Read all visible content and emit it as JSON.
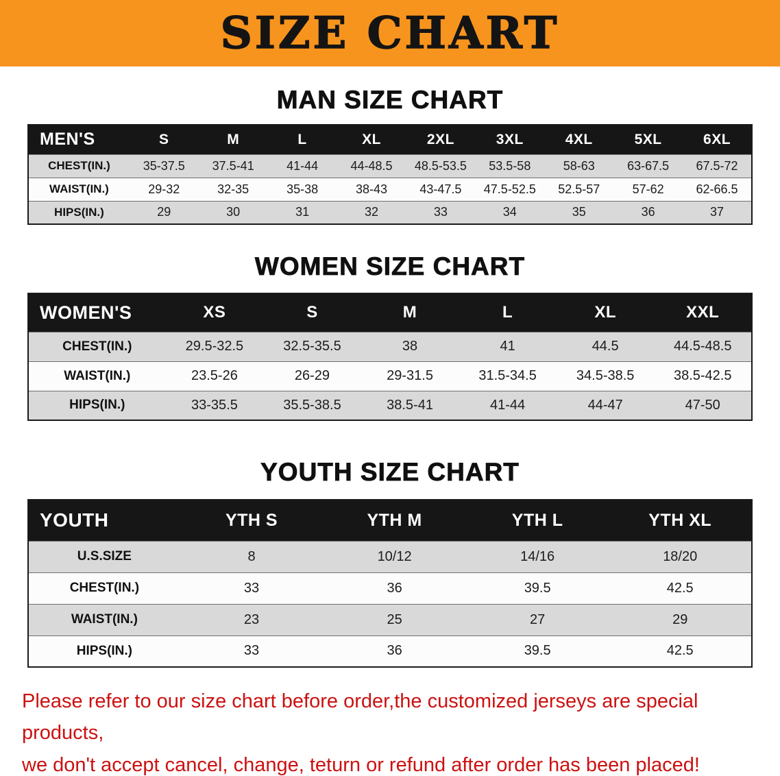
{
  "banner": {
    "title": "SIZE CHART",
    "bg_color": "#f7941d",
    "text_color": "#141414"
  },
  "sections": {
    "men": {
      "heading": "MAN SIZE CHART",
      "table": {
        "header_label": "MEN'S",
        "sizes": [
          "S",
          "M",
          "L",
          "XL",
          "2XL",
          "3XL",
          "4XL",
          "5XL",
          "6XL"
        ],
        "rows": [
          {
            "label": "CHEST(IN.)",
            "values": [
              "35-37.5",
              "37.5-41",
              "41-44",
              "44-48.5",
              "48.5-53.5",
              "53.5-58",
              "58-63",
              "63-67.5",
              "67.5-72"
            ]
          },
          {
            "label": "WAIST(IN.)",
            "values": [
              "29-32",
              "32-35",
              "35-38",
              "38-43",
              "43-47.5",
              "47.5-52.5",
              "52.5-57",
              "57-62",
              "62-66.5"
            ]
          },
          {
            "label": "HIPS(IN.)",
            "values": [
              "29",
              "30",
              "31",
              "32",
              "33",
              "34",
              "35",
              "36",
              "37"
            ]
          }
        ]
      }
    },
    "women": {
      "heading": "WOMEN SIZE CHART",
      "table": {
        "header_label": "WOMEN'S",
        "sizes": [
          "XS",
          "S",
          "M",
          "L",
          "XL",
          "XXL"
        ],
        "rows": [
          {
            "label": "CHEST(IN.)",
            "values": [
              "29.5-32.5",
              "32.5-35.5",
              "38",
              "41",
              "44.5",
              "44.5-48.5"
            ]
          },
          {
            "label": "WAIST(IN.)",
            "values": [
              "23.5-26",
              "26-29",
              "29-31.5",
              "31.5-34.5",
              "34.5-38.5",
              "38.5-42.5"
            ]
          },
          {
            "label": "HIPS(IN.)",
            "values": [
              "33-35.5",
              "35.5-38.5",
              "38.5-41",
              "41-44",
              "44-47",
              "47-50"
            ]
          }
        ]
      }
    },
    "youth": {
      "heading": "YOUTH SIZE CHART",
      "table": {
        "header_label": "YOUTH",
        "sizes": [
          "YTH S",
          "YTH M",
          "YTH L",
          "YTH XL"
        ],
        "rows": [
          {
            "label": "U.S.SIZE",
            "values": [
              "8",
              "10/12",
              "14/16",
              "18/20"
            ]
          },
          {
            "label": "CHEST(IN.)",
            "values": [
              "33",
              "36",
              "39.5",
              "42.5"
            ]
          },
          {
            "label": "WAIST(IN.)",
            "values": [
              "23",
              "25",
              "27",
              "29"
            ]
          },
          {
            "label": "HIPS(IN.)",
            "values": [
              "33",
              "36",
              "39.5",
              "42.5"
            ]
          }
        ]
      }
    }
  },
  "footer": {
    "line1": "Please refer to our size chart before order,the customized jerseys are special products,",
    "line2": "we don't accept cancel, change, teturn or refund after order has been placed!",
    "text_color": "#cc1111"
  }
}
